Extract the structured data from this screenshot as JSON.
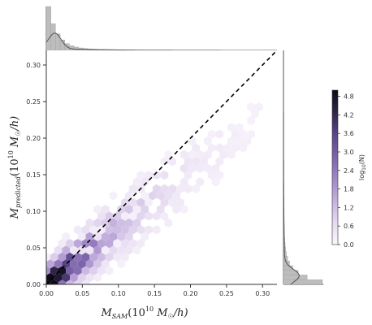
{
  "chart_data": {
    "type": "heatmap",
    "subtype": "hexbin-jointplot",
    "xlabel": "M_SAM(10^10 M_☉/h)",
    "ylabel": "M_predicted(10^10 M_☉/h)",
    "xlabel_parts": {
      "main": "M",
      "sub": "SAM",
      "pre": "(10",
      "exp": "10",
      "unit": " M",
      "sun": "☉",
      "post": "/h)"
    },
    "ylabel_parts": {
      "main": "M",
      "sub": "predicted",
      "pre": "(10",
      "exp": "10",
      "unit": " M",
      "sun": "☉",
      "post": "/h)"
    },
    "xlim": [
      0.0,
      0.32
    ],
    "ylim": [
      0.0,
      0.32
    ],
    "x_ticks": [
      "0.00",
      "0.05",
      "0.10",
      "0.15",
      "0.20",
      "0.25",
      "0.30"
    ],
    "y_ticks": [
      "0.00",
      "0.05",
      "0.10",
      "0.15",
      "0.20",
      "0.25",
      "0.30"
    ],
    "reference_line": {
      "style": "dashed",
      "color": "#000000",
      "from": [
        0.0,
        0.0
      ],
      "to": [
        0.32,
        0.32
      ]
    },
    "colorbar": {
      "label": "log10(N)",
      "label_parts": {
        "main": "log",
        "sub": "10",
        "arg": "(N)"
      },
      "range": [
        0.0,
        5.0
      ],
      "ticks": [
        "0.0",
        "0.6",
        "1.2",
        "1.8",
        "2.4",
        "3.0",
        "3.6",
        "4.2",
        "4.8"
      ],
      "cmap": [
        "#fbf8fd",
        "#e4d9f0",
        "#c4b0de",
        "#9f86c6",
        "#7b63a8",
        "#574688",
        "#2f2547",
        "#0e0a18"
      ]
    },
    "hex_density": {
      "description": "log10 counts concentrated along a band from origin towards (0.3,0.2); values in log10(N)",
      "peak": {
        "x": 0.005,
        "y": 0.005,
        "value": 4.9
      },
      "core_band": [
        {
          "x": 0.02,
          "y": 0.02,
          "value": 3.8
        },
        {
          "x": 0.05,
          "y": 0.04,
          "value": 3.0
        },
        {
          "x": 0.08,
          "y": 0.07,
          "value": 2.4
        },
        {
          "x": 0.12,
          "y": 0.1,
          "value": 1.8
        },
        {
          "x": 0.16,
          "y": 0.14,
          "value": 1.3
        },
        {
          "x": 0.22,
          "y": 0.17,
          "value": 1.0
        },
        {
          "x": 0.3,
          "y": 0.2,
          "value": 0.7
        }
      ]
    },
    "marginal_x": {
      "description": "histogram + KDE of M_SAM, sharply peaked near 0"
    },
    "marginal_y": {
      "description": "histogram + KDE of M_predicted, sharply peaked near 0"
    },
    "colors": {
      "axis": "#333333",
      "marginal_fill": "#bdbdbd",
      "marginal_line": "#555555",
      "dash": "#000000"
    }
  }
}
